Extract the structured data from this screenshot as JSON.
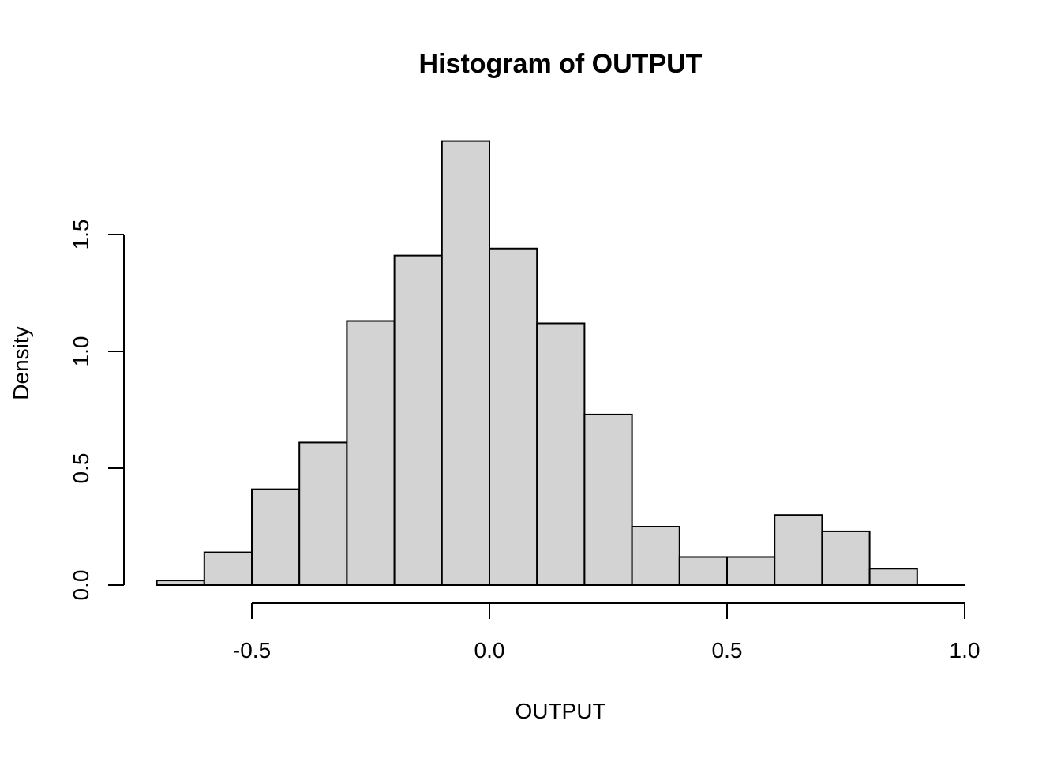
{
  "chart_data": {
    "type": "bar",
    "title": "Histogram of OUTPUT",
    "xlabel": "OUTPUT",
    "ylabel": "Density",
    "bins": [
      {
        "start": -0.7,
        "end": -0.6,
        "density": 0.02
      },
      {
        "start": -0.6,
        "end": -0.5,
        "density": 0.14
      },
      {
        "start": -0.5,
        "end": -0.4,
        "density": 0.41
      },
      {
        "start": -0.4,
        "end": -0.3,
        "density": 0.61
      },
      {
        "start": -0.3,
        "end": -0.2,
        "density": 1.13
      },
      {
        "start": -0.2,
        "end": -0.1,
        "density": 1.41
      },
      {
        "start": -0.1,
        "end": 0.0,
        "density": 1.9
      },
      {
        "start": 0.0,
        "end": 0.1,
        "density": 1.44
      },
      {
        "start": 0.1,
        "end": 0.2,
        "density": 1.12
      },
      {
        "start": 0.2,
        "end": 0.3,
        "density": 0.73
      },
      {
        "start": 0.3,
        "end": 0.4,
        "density": 0.25
      },
      {
        "start": 0.4,
        "end": 0.5,
        "density": 0.12
      },
      {
        "start": 0.5,
        "end": 0.6,
        "density": 0.12
      },
      {
        "start": 0.6,
        "end": 0.7,
        "density": 0.3
      },
      {
        "start": 0.7,
        "end": 0.8,
        "density": 0.23
      },
      {
        "start": 0.8,
        "end": 0.9,
        "density": 0.07
      }
    ],
    "xticks": [
      {
        "value": -0.5,
        "label": "-0.5"
      },
      {
        "value": 0.0,
        "label": "0.0"
      },
      {
        "value": 0.5,
        "label": "0.5"
      },
      {
        "value": 1.0,
        "label": "1.0"
      }
    ],
    "yticks": [
      {
        "value": 0.0,
        "label": "0.0"
      },
      {
        "value": 0.5,
        "label": "0.5"
      },
      {
        "value": 1.0,
        "label": "1.0"
      },
      {
        "value": 1.5,
        "label": "1.5"
      }
    ],
    "xlim": [
      -0.7,
      1.0
    ],
    "ylim": [
      0,
      1.9
    ],
    "grid": false,
    "colors": {
      "bar_fill": "#d3d3d3",
      "bar_stroke": "#000000"
    }
  }
}
